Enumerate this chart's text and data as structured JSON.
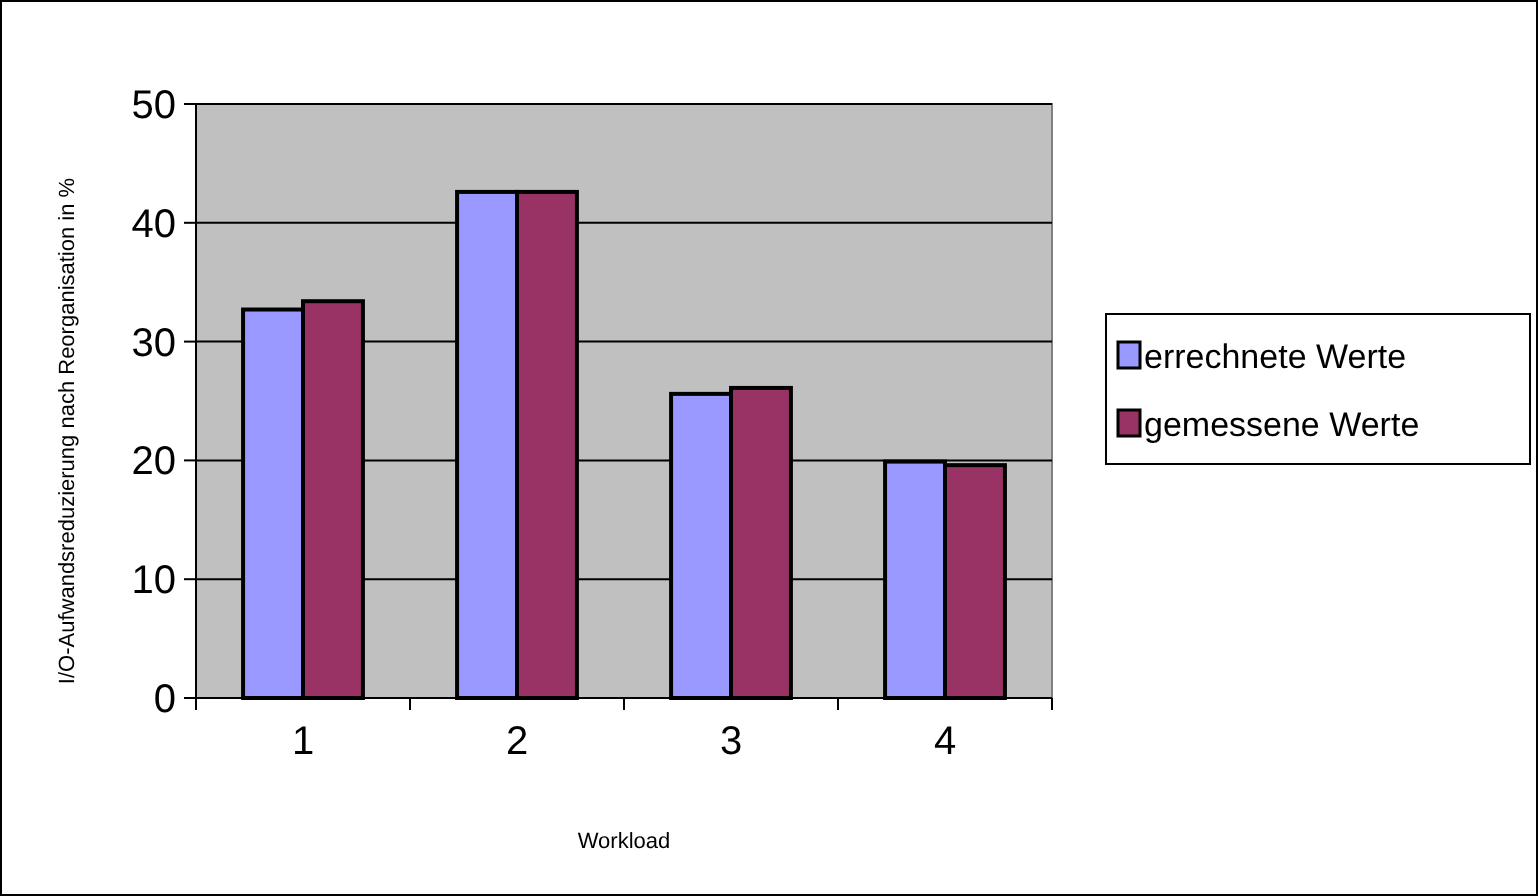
{
  "chart_data": {
    "type": "bar",
    "xlabel": "Workload",
    "ylabel": "I/O-Aufwandsreduzierung nach Reorganisation in %",
    "categories": [
      "1",
      "2",
      "3",
      "4"
    ],
    "series": [
      {
        "name": "errechnete Werte",
        "color": "#9999ff",
        "values": [
          32.7,
          42.6,
          25.6,
          19.9
        ]
      },
      {
        "name": "gemessene Werte",
        "color": "#993366",
        "values": [
          33.4,
          42.6,
          26.1,
          19.6
        ]
      }
    ],
    "ylim": [
      0,
      50
    ],
    "yticks": [
      0,
      10,
      20,
      30,
      40,
      50
    ],
    "grid": "y",
    "legend": "right"
  }
}
